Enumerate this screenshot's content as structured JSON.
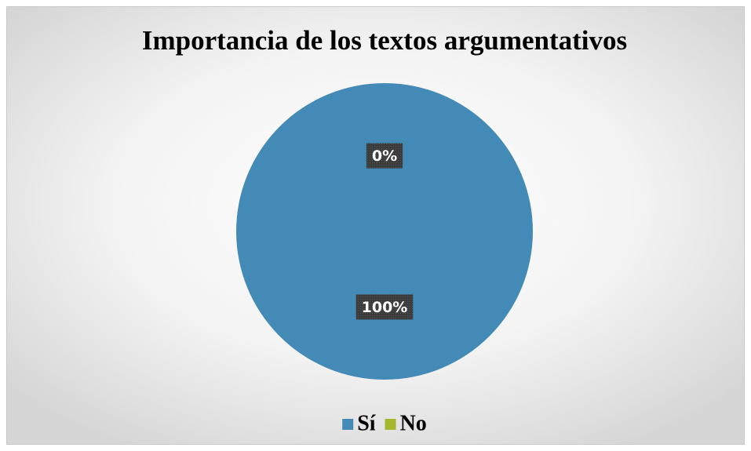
{
  "chart_data": {
    "type": "pie",
    "title": "Importancia de los textos argumentativos",
    "categories": [
      "Sí",
      "No"
    ],
    "values": [
      100,
      0
    ],
    "value_labels": [
      "100%",
      "0%"
    ],
    "colors": [
      "#438ab7",
      "#a6b72e"
    ],
    "legend": "bottom"
  }
}
